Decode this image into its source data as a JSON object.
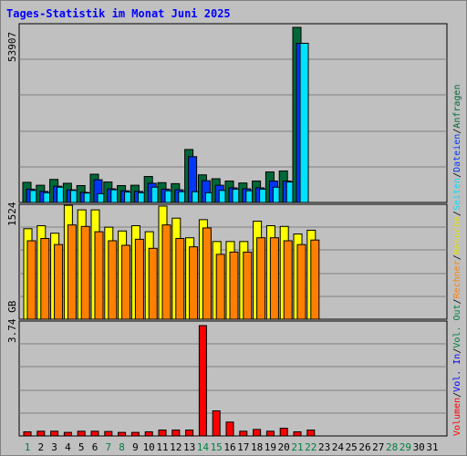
{
  "title": "Tages-Statistik im Monat Juni 2025",
  "colors": {
    "anfragen": "#006838",
    "dateien": "#0037f8",
    "seiten": "#00e0ff",
    "besuche": "#ffff00",
    "rechner": "#ff8000",
    "vol_out": "#00ff00",
    "vol_in": "#0000ff",
    "volumen": "#ff0000",
    "weekend_label": "#008040",
    "weekday_label": "#000000",
    "title": "#0000ff"
  },
  "legend": {
    "top": [
      {
        "text": "Anfragen",
        "color": "#006838"
      },
      {
        "text": "/",
        "color": "#000000"
      },
      {
        "text": "Dateien",
        "color": "#0037f8"
      },
      {
        "text": "/",
        "color": "#000000"
      },
      {
        "text": "Seiten",
        "color": "#00e0ff"
      },
      {
        "text": "/",
        "color": "#000000"
      },
      {
        "text": "Besuche",
        "color": "#e0e000"
      },
      {
        "text": "/",
        "color": "#000000"
      },
      {
        "text": "Rechner",
        "color": "#ff8000"
      },
      {
        "text": "/",
        "color": "#000000"
      },
      {
        "text": "Vol. Out",
        "color": "#008040"
      },
      {
        "text": "/",
        "color": "#000000"
      },
      {
        "text": "Vol. In",
        "color": "#0000ff"
      },
      {
        "text": "/",
        "color": "#000000"
      },
      {
        "text": "Volumen",
        "color": "#ff0000"
      }
    ]
  },
  "chart_data": [
    {
      "type": "bar",
      "panel": "hits",
      "ymax_label": "53907",
      "ylim": [
        0,
        53907
      ],
      "grid": true,
      "categories": [
        "1",
        "2",
        "3",
        "4",
        "5",
        "6",
        "7",
        "8",
        "9",
        "10",
        "11",
        "12",
        "13",
        "14",
        "15",
        "16",
        "17",
        "18",
        "19",
        "20",
        "21",
        "22",
        "23",
        "24",
        "25",
        "26",
        "27",
        "28",
        "29",
        "30",
        "31"
      ],
      "series": [
        {
          "name": "Anfragen",
          "values": [
            6200,
            5300,
            7100,
            5900,
            5200,
            8700,
            6300,
            5200,
            5300,
            8000,
            6100,
            5800,
            16300,
            8500,
            7300,
            6600,
            6000,
            6600,
            9400,
            9700,
            53907,
            0,
            0,
            0,
            0,
            0,
            0,
            0,
            0,
            0,
            0
          ]
        },
        {
          "name": "Dateien",
          "values": [
            4100,
            3400,
            5000,
            3900,
            3100,
            7000,
            4200,
            3600,
            3400,
            5900,
            4100,
            3900,
            14100,
            6700,
            5300,
            4500,
            4200,
            4500,
            6600,
            6600,
            49000,
            0,
            0,
            0,
            0,
            0,
            0,
            0,
            0,
            0,
            0
          ]
        },
        {
          "name": "Seiten",
          "values": [
            3700,
            3000,
            4700,
            3700,
            2900,
            2700,
            3900,
            3200,
            3000,
            4700,
            3600,
            3300,
            3300,
            3000,
            3700,
            4100,
            3600,
            4100,
            4700,
            6300,
            49000,
            0,
            0,
            0,
            0,
            0,
            0,
            0,
            0,
            0,
            0
          ]
        }
      ]
    },
    {
      "type": "bar",
      "panel": "visits",
      "ymax_label": "1524",
      "ylim": [
        0,
        1524
      ],
      "grid": true,
      "categories": [
        "1",
        "2",
        "3",
        "4",
        "5",
        "6",
        "7",
        "8",
        "9",
        "10",
        "11",
        "12",
        "13",
        "14",
        "15",
        "16",
        "17",
        "18",
        "19",
        "20",
        "21",
        "22",
        "23",
        "24",
        "25",
        "26",
        "27",
        "28",
        "29",
        "30",
        "31"
      ],
      "series": [
        {
          "name": "Besuche",
          "values": [
            1200,
            1240,
            1140,
            1510,
            1450,
            1450,
            1220,
            1170,
            1240,
            1160,
            1500,
            1340,
            1080,
            1320,
            1030,
            1030,
            1030,
            1300,
            1240,
            1230,
            1130,
            1180,
            0,
            0,
            0,
            0,
            0,
            0,
            0,
            0,
            0
          ]
        },
        {
          "name": "Rechner",
          "values": [
            1040,
            1070,
            990,
            1250,
            1230,
            1160,
            1040,
            980,
            1060,
            940,
            1250,
            1070,
            960,
            1210,
            860,
            890,
            890,
            1080,
            1080,
            1040,
            990,
            1050,
            0,
            0,
            0,
            0,
            0,
            0,
            0,
            0,
            0
          ]
        }
      ]
    },
    {
      "type": "bar",
      "panel": "volume",
      "ymax_label": "3.74 GB",
      "ylim": [
        0,
        3.74
      ],
      "grid": true,
      "categories": [
        "1",
        "2",
        "3",
        "4",
        "5",
        "6",
        "7",
        "8",
        "9",
        "10",
        "11",
        "12",
        "13",
        "14",
        "15",
        "16",
        "17",
        "18",
        "19",
        "20",
        "21",
        "22",
        "23",
        "24",
        "25",
        "26",
        "27",
        "28",
        "29",
        "30",
        "31"
      ],
      "series": [
        {
          "name": "Volumen",
          "values": [
            0.14,
            0.16,
            0.16,
            0.12,
            0.16,
            0.16,
            0.15,
            0.12,
            0.12,
            0.14,
            0.2,
            0.2,
            0.2,
            3.74,
            0.85,
            0.47,
            0.16,
            0.22,
            0.16,
            0.26,
            0.14,
            0.2,
            0,
            0,
            0,
            0,
            0,
            0,
            0,
            0,
            0
          ]
        }
      ]
    }
  ],
  "days": [
    {
      "label": "1",
      "weekend": true
    },
    {
      "label": "2",
      "weekend": false
    },
    {
      "label": "3",
      "weekend": false
    },
    {
      "label": "4",
      "weekend": false
    },
    {
      "label": "5",
      "weekend": false
    },
    {
      "label": "6",
      "weekend": false
    },
    {
      "label": "7",
      "weekend": true
    },
    {
      "label": "8",
      "weekend": true
    },
    {
      "label": "9",
      "weekend": false
    },
    {
      "label": "10",
      "weekend": false
    },
    {
      "label": "11",
      "weekend": false
    },
    {
      "label": "12",
      "weekend": false
    },
    {
      "label": "13",
      "weekend": false
    },
    {
      "label": "14",
      "weekend": true
    },
    {
      "label": "15",
      "weekend": true
    },
    {
      "label": "16",
      "weekend": false
    },
    {
      "label": "17",
      "weekend": false
    },
    {
      "label": "18",
      "weekend": false
    },
    {
      "label": "19",
      "weekend": false
    },
    {
      "label": "20",
      "weekend": false
    },
    {
      "label": "21",
      "weekend": true
    },
    {
      "label": "22",
      "weekend": true
    },
    {
      "label": "23",
      "weekend": false
    },
    {
      "label": "24",
      "weekend": false
    },
    {
      "label": "25",
      "weekend": false
    },
    {
      "label": "26",
      "weekend": false
    },
    {
      "label": "27",
      "weekend": false
    },
    {
      "label": "28",
      "weekend": true
    },
    {
      "label": "29",
      "weekend": true
    },
    {
      "label": "30",
      "weekend": false
    },
    {
      "label": "31",
      "weekend": false
    }
  ]
}
